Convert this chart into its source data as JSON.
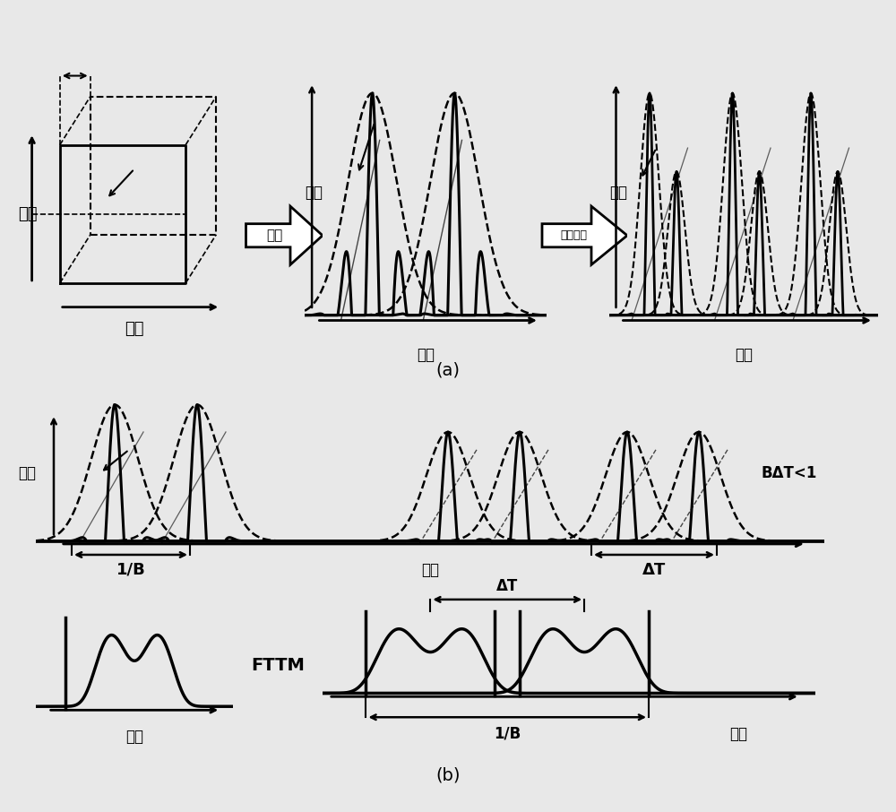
{
  "title_a": "(a)",
  "title_b": "(b)",
  "label_wavelength": "波长",
  "label_time": "时间",
  "label_modulate": "调制",
  "label_spectrum": "频谱塑形",
  "label_BAT": "BΔT<1",
  "label_1B": "1/B",
  "label_DT": "ΔT",
  "label_FTTM": "FTTM",
  "bg_color": "#e8e8e8",
  "line_color": "#000000"
}
